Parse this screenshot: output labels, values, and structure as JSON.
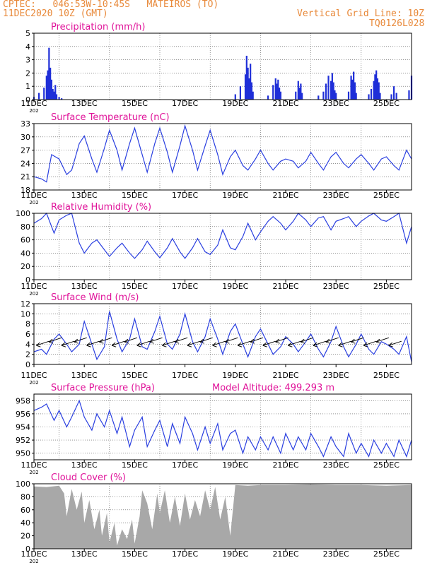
{
  "header": {
    "line1": "CPTEC:   046:53W-10:45S   MATEIROS (TO)",
    "line2": "11DEC2020 10Z (GMT)",
    "right1": "Vertical Grid Line: 10Z",
    "right2": "TQ0126L028"
  },
  "colors": {
    "header": "#e8893a",
    "title": "#e0149a",
    "line": "#2a3fe0",
    "bar": "#1f2fd8",
    "cloud": "#a8a8a8"
  },
  "chart_data": [
    {
      "type": "bar",
      "title": "Precipitation (mm/h)",
      "x_tick_labels": [
        "11DEC",
        "13DEC",
        "15DEC",
        "17DEC",
        "19DEC",
        "21DEC",
        "23DEC",
        "25DEC"
      ],
      "x_year_fragment": "202",
      "ylim": [
        0,
        5
      ],
      "yticks": [
        0,
        1,
        2,
        3,
        4,
        5
      ],
      "series": [
        {
          "x": [
            11.0,
            11.2,
            11.4,
            11.5,
            11.55,
            11.6,
            11.65,
            11.7,
            11.75,
            11.8,
            11.85,
            11.9,
            12.0,
            12.1,
            19.0,
            19.2,
            19.4,
            19.45,
            19.5,
            19.55,
            19.6,
            19.65,
            19.7,
            20.3,
            20.5,
            20.6,
            20.65,
            20.7,
            20.75,
            20.8,
            21.4,
            21.5,
            21.55,
            21.6,
            21.65,
            22.3,
            22.5,
            22.6,
            22.7,
            22.8,
            22.85,
            22.9,
            22.95,
            23.0,
            23.5,
            23.6,
            23.65,
            23.7,
            23.75,
            23.8,
            24.3,
            24.4,
            24.5,
            24.55,
            24.6,
            24.65,
            24.7,
            24.75,
            25.2,
            25.3,
            25.4,
            25.9,
            26.0
          ],
          "values": [
            0.2,
            0.5,
            0.9,
            1.8,
            2.2,
            3.9,
            2.4,
            1.5,
            0.8,
            0.6,
            1.1,
            0.4,
            0.2,
            0.1,
            0.4,
            1.0,
            1.9,
            3.3,
            2.4,
            1.6,
            2.7,
            1.3,
            0.6,
            0.3,
            1.1,
            1.6,
            1.2,
            1.5,
            0.9,
            0.6,
            0.6,
            1.4,
            0.9,
            1.2,
            0.5,
            0.3,
            0.6,
            1.2,
            1.8,
            1.4,
            2.0,
            1.3,
            0.7,
            0.5,
            0.6,
            1.8,
            1.5,
            2.1,
            1.3,
            0.5,
            0.4,
            0.8,
            1.4,
            1.9,
            2.2,
            1.6,
            1.3,
            0.5,
            0.4,
            1.0,
            0.5,
            0.7,
            1.8
          ]
        }
      ]
    },
    {
      "type": "line",
      "title": "Surface Temperature (nC)",
      "ylim": [
        18,
        33
      ],
      "yticks": [
        18,
        21,
        24,
        27,
        30,
        33
      ],
      "series": [
        {
          "x": [
            11.0,
            11.3,
            11.5,
            11.7,
            12.0,
            12.3,
            12.5,
            12.8,
            13.0,
            13.3,
            13.5,
            13.8,
            14.0,
            14.3,
            14.5,
            14.8,
            15.0,
            15.3,
            15.5,
            15.8,
            16.0,
            16.3,
            16.5,
            16.8,
            17.0,
            17.3,
            17.5,
            17.8,
            18.0,
            18.3,
            18.5,
            18.8,
            19.0,
            19.3,
            19.5,
            19.8,
            20.0,
            20.3,
            20.5,
            20.8,
            21.0,
            21.3,
            21.5,
            21.8,
            22.0,
            22.3,
            22.5,
            22.8,
            23.0,
            23.3,
            23.5,
            23.8,
            24.0,
            24.3,
            24.5,
            24.8,
            25.0,
            25.3,
            25.5,
            25.8,
            26.0
          ],
          "values": [
            21.0,
            20.5,
            19.8,
            26.0,
            25.0,
            21.5,
            22.5,
            28.5,
            30.2,
            25.0,
            22.0,
            27.5,
            31.5,
            27.0,
            22.5,
            28.5,
            32.0,
            26.0,
            22.0,
            28.5,
            32.0,
            26.5,
            22.0,
            28.0,
            32.5,
            27.0,
            22.5,
            28.0,
            31.5,
            26.0,
            21.5,
            25.5,
            27.0,
            23.5,
            22.5,
            25.0,
            27.0,
            24.0,
            22.5,
            24.5,
            25.0,
            24.5,
            23.0,
            24.5,
            26.5,
            24.0,
            22.5,
            25.5,
            26.5,
            24.0,
            23.0,
            25.0,
            26.0,
            24.0,
            22.5,
            25.0,
            25.5,
            23.5,
            22.5,
            27.0,
            25.0
          ]
        }
      ]
    },
    {
      "type": "line",
      "title": "Relative Humidity (%)",
      "ylim": [
        0,
        100
      ],
      "yticks": [
        0,
        20,
        40,
        60,
        80,
        100
      ],
      "series": [
        {
          "x": [
            11.0,
            11.3,
            11.5,
            11.8,
            12.0,
            12.3,
            12.5,
            12.8,
            13.0,
            13.3,
            13.5,
            13.8,
            14.0,
            14.3,
            14.5,
            14.8,
            15.0,
            15.3,
            15.5,
            15.8,
            16.0,
            16.3,
            16.5,
            16.8,
            17.0,
            17.3,
            17.5,
            17.8,
            18.0,
            18.3,
            18.5,
            18.8,
            19.0,
            19.3,
            19.5,
            19.8,
            20.0,
            20.3,
            20.5,
            20.8,
            21.0,
            21.3,
            21.5,
            21.8,
            22.0,
            22.3,
            22.5,
            22.8,
            23.0,
            23.3,
            23.5,
            23.8,
            24.0,
            24.3,
            24.5,
            24.8,
            25.0,
            25.3,
            25.5,
            25.8,
            26.0
          ],
          "values": [
            85,
            92,
            100,
            70,
            90,
            97,
            100,
            55,
            40,
            55,
            60,
            45,
            35,
            48,
            55,
            40,
            32,
            45,
            58,
            42,
            33,
            48,
            62,
            42,
            32,
            48,
            62,
            42,
            38,
            52,
            75,
            48,
            45,
            65,
            85,
            60,
            72,
            88,
            95,
            85,
            75,
            88,
            100,
            90,
            80,
            93,
            95,
            75,
            88,
            92,
            95,
            80,
            88,
            96,
            100,
            90,
            88,
            95,
            100,
            55,
            80
          ]
        }
      ]
    },
    {
      "type": "line",
      "title": "Surface Wind (m/s)",
      "ylim": [
        0,
        12
      ],
      "yticks": [
        0,
        2,
        4,
        6,
        8,
        10,
        12
      ],
      "series": [
        {
          "x": [
            11.0,
            11.3,
            11.5,
            11.8,
            12.0,
            12.3,
            12.5,
            12.8,
            13.0,
            13.3,
            13.5,
            13.8,
            14.0,
            14.3,
            14.5,
            14.8,
            15.0,
            15.3,
            15.5,
            15.8,
            16.0,
            16.3,
            16.5,
            16.8,
            17.0,
            17.3,
            17.5,
            17.8,
            18.0,
            18.3,
            18.5,
            18.8,
            19.0,
            19.3,
            19.5,
            19.8,
            20.0,
            20.3,
            20.5,
            20.8,
            21.0,
            21.3,
            21.5,
            21.8,
            22.0,
            22.3,
            22.5,
            22.8,
            23.0,
            23.3,
            23.5,
            23.8,
            24.0,
            24.3,
            24.5,
            24.8,
            25.0,
            25.3,
            25.5,
            25.8,
            26.0
          ],
          "values": [
            2.5,
            3.0,
            2.0,
            5.0,
            6.0,
            4.0,
            2.5,
            4.0,
            8.5,
            4.0,
            1.0,
            3.5,
            10.5,
            5.0,
            2.5,
            5.0,
            9.0,
            3.5,
            3.0,
            6.5,
            9.5,
            4.0,
            3.0,
            6.0,
            10.0,
            4.5,
            2.5,
            5.5,
            9.0,
            5.0,
            2.0,
            6.5,
            8.0,
            4.0,
            1.5,
            5.5,
            7.0,
            4.0,
            2.0,
            3.5,
            5.5,
            4.0,
            2.5,
            4.5,
            6.0,
            3.0,
            1.5,
            4.5,
            7.5,
            3.5,
            1.5,
            4.0,
            6.0,
            3.0,
            2.0,
            4.5,
            4.0,
            3.0,
            2.0,
            5.5,
            0.5
          ]
        }
      ],
      "wind_arrows": true
    },
    {
      "type": "line",
      "title": "Surface Pressure (hPa)",
      "annotation": "Model Altitude: 499.293 m",
      "ylim": [
        949,
        959
      ],
      "yticks": [
        950,
        952,
        954,
        956,
        958
      ],
      "series": [
        {
          "x": [
            11.0,
            11.3,
            11.5,
            11.8,
            12.0,
            12.3,
            12.5,
            12.8,
            13.0,
            13.3,
            13.5,
            13.8,
            14.0,
            14.3,
            14.5,
            14.8,
            15.0,
            15.3,
            15.5,
            15.8,
            16.0,
            16.3,
            16.5,
            16.8,
            17.0,
            17.3,
            17.5,
            17.8,
            18.0,
            18.3,
            18.5,
            18.8,
            19.0,
            19.3,
            19.5,
            19.8,
            20.0,
            20.3,
            20.5,
            20.8,
            21.0,
            21.3,
            21.5,
            21.8,
            22.0,
            22.3,
            22.5,
            22.8,
            23.0,
            23.3,
            23.5,
            23.8,
            24.0,
            24.3,
            24.5,
            24.8,
            25.0,
            25.3,
            25.5,
            25.8,
            26.0
          ],
          "values": [
            956.5,
            957.0,
            957.5,
            955.0,
            956.5,
            954.0,
            955.5,
            958.0,
            955.5,
            953.5,
            956.0,
            954.0,
            956.5,
            953.0,
            955.5,
            951.0,
            953.5,
            955.5,
            951.0,
            953.5,
            955.0,
            951.0,
            954.5,
            951.5,
            955.5,
            953.0,
            950.5,
            954.0,
            951.5,
            954.5,
            950.5,
            953.0,
            953.5,
            950.0,
            952.5,
            950.5,
            952.5,
            950.5,
            952.5,
            950.0,
            953.0,
            950.5,
            952.5,
            950.5,
            953.0,
            951.0,
            949.5,
            952.5,
            951.0,
            949.5,
            953.0,
            950.0,
            951.5,
            949.5,
            952.0,
            950.0,
            951.5,
            949.5,
            952.0,
            949.5,
            952.0
          ]
        }
      ]
    },
    {
      "type": "area",
      "title": "Cloud Cover (%)",
      "ylim": [
        0,
        100
      ],
      "yticks": [
        0,
        20,
        40,
        60,
        80,
        100
      ],
      "series": [
        {
          "x": [
            11.0,
            11.5,
            12.0,
            12.2,
            12.3,
            12.5,
            12.7,
            12.9,
            13.0,
            13.2,
            13.4,
            13.6,
            13.7,
            13.9,
            14.0,
            14.2,
            14.3,
            14.5,
            14.7,
            14.9,
            15.0,
            15.2,
            15.3,
            15.5,
            15.7,
            15.9,
            16.0,
            16.2,
            16.4,
            16.6,
            16.8,
            17.0,
            17.2,
            17.4,
            17.6,
            17.8,
            18.0,
            18.2,
            18.4,
            18.6,
            18.8,
            19.0,
            19.5,
            20.0,
            21.0,
            22.0,
            23.0,
            24.0,
            25.0,
            26.0
          ],
          "values": [
            96,
            95,
            97,
            85,
            50,
            92,
            60,
            88,
            40,
            75,
            30,
            60,
            20,
            55,
            10,
            40,
            5,
            30,
            15,
            45,
            8,
            50,
            90,
            70,
            30,
            85,
            55,
            90,
            40,
            80,
            35,
            85,
            45,
            75,
            50,
            90,
            60,
            95,
            45,
            80,
            20,
            98,
            97,
            98,
            98,
            99,
            98,
            98,
            97,
            98
          ]
        }
      ]
    }
  ]
}
